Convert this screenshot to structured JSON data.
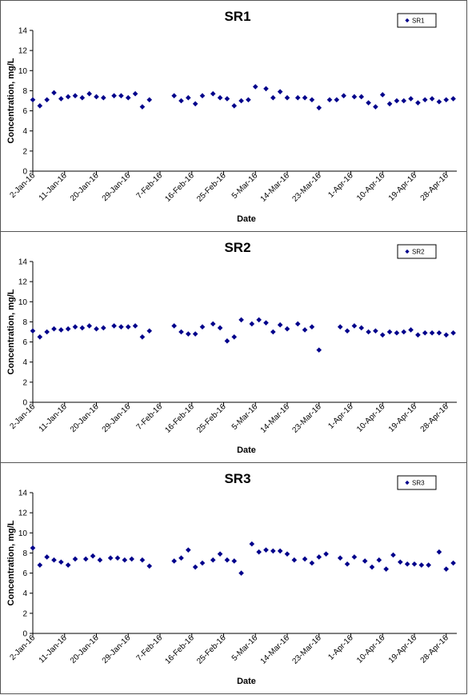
{
  "xlabel": "Date",
  "ylabel": "Concentration, mg/L",
  "marker_color": "#00008B",
  "x_tick_labels": [
    "2-Jan-16",
    "11-Jan-16",
    "20-Jan-16",
    "29-Jan-16",
    "7-Feb-16",
    "16-Feb-16",
    "25-Feb-16",
    "5-Mar-16",
    "14-Mar-16",
    "23-Mar-16",
    "1-Apr-16",
    "10-Apr-16",
    "19-Apr-16",
    "28-Apr-16"
  ],
  "y_tick_labels": [
    "0",
    "2",
    "4",
    "6",
    "8",
    "10",
    "12",
    "14"
  ],
  "chart_data": [
    {
      "type": "scatter",
      "title": "SR1",
      "xlabel": "Date",
      "ylabel": "Concentration, mg/L",
      "xlim": [
        "2-Jan-16",
        "1-May-16"
      ],
      "ylim": [
        0,
        14
      ],
      "legend": "top-right",
      "grid": false,
      "series": [
        {
          "name": "SR1",
          "x": [
            "2-Jan-16",
            "4-Jan-16",
            "6-Jan-16",
            "8-Jan-16",
            "10-Jan-16",
            "12-Jan-16",
            "14-Jan-16",
            "16-Jan-16",
            "18-Jan-16",
            "20-Jan-16",
            "22-Jan-16",
            "25-Jan-16",
            "27-Jan-16",
            "29-Jan-16",
            "31-Jan-16",
            "2-Feb-16",
            "4-Feb-16",
            "11-Feb-16",
            "13-Feb-16",
            "15-Feb-16",
            "17-Feb-16",
            "19-Feb-16",
            "22-Feb-16",
            "24-Feb-16",
            "26-Feb-16",
            "28-Feb-16",
            "1-Mar-16",
            "3-Mar-16",
            "5-Mar-16",
            "8-Mar-16",
            "10-Mar-16",
            "12-Mar-16",
            "14-Mar-16",
            "17-Mar-16",
            "19-Mar-16",
            "21-Mar-16",
            "23-Mar-16",
            "26-Mar-16",
            "28-Mar-16",
            "30-Mar-16",
            "2-Apr-16",
            "4-Apr-16",
            "6-Apr-16",
            "8-Apr-16",
            "10-Apr-16",
            "12-Apr-16",
            "14-Apr-16",
            "16-Apr-16",
            "18-Apr-16",
            "20-Apr-16",
            "22-Apr-16",
            "24-Apr-16",
            "26-Apr-16",
            "28-Apr-16",
            "30-Apr-16"
          ],
          "y": [
            7.1,
            6.5,
            7.1,
            7.8,
            7.2,
            7.4,
            7.5,
            7.3,
            7.7,
            7.4,
            7.3,
            7.5,
            7.5,
            7.3,
            7.7,
            6.4,
            7.1,
            7.5,
            7.0,
            7.3,
            6.7,
            7.5,
            7.7,
            7.3,
            7.2,
            6.5,
            7.0,
            7.1,
            8.4,
            8.2,
            7.3,
            7.9,
            7.3,
            7.3,
            7.3,
            7.1,
            6.3,
            7.1,
            7.1,
            7.5,
            7.4,
            7.4,
            6.8,
            6.4,
            7.6,
            6.7,
            7.0,
            7.0,
            7.2,
            6.8,
            7.1,
            7.2,
            6.9,
            7.1,
            7.2
          ]
        }
      ]
    },
    {
      "type": "scatter",
      "title": "SR2",
      "xlabel": "Date",
      "ylabel": "Concentration, mg/L",
      "xlim": [
        "2-Jan-16",
        "1-May-16"
      ],
      "ylim": [
        0,
        14
      ],
      "legend": "top-right",
      "grid": false,
      "series": [
        {
          "name": "SR2",
          "x": [
            "2-Jan-16",
            "4-Jan-16",
            "6-Jan-16",
            "8-Jan-16",
            "10-Jan-16",
            "12-Jan-16",
            "14-Jan-16",
            "16-Jan-16",
            "18-Jan-16",
            "20-Jan-16",
            "22-Jan-16",
            "25-Jan-16",
            "27-Jan-16",
            "29-Jan-16",
            "31-Jan-16",
            "2-Feb-16",
            "4-Feb-16",
            "11-Feb-16",
            "13-Feb-16",
            "15-Feb-16",
            "17-Feb-16",
            "19-Feb-16",
            "22-Feb-16",
            "24-Feb-16",
            "26-Feb-16",
            "28-Feb-16",
            "1-Mar-16",
            "4-Mar-16",
            "6-Mar-16",
            "8-Mar-16",
            "10-Mar-16",
            "12-Mar-16",
            "14-Mar-16",
            "17-Mar-16",
            "19-Mar-16",
            "21-Mar-16",
            "23-Mar-16",
            "29-Mar-16",
            "31-Mar-16",
            "2-Apr-16",
            "4-Apr-16",
            "6-Apr-16",
            "8-Apr-16",
            "10-Apr-16",
            "12-Apr-16",
            "14-Apr-16",
            "16-Apr-16",
            "18-Apr-16",
            "20-Apr-16",
            "22-Apr-16",
            "24-Apr-16",
            "26-Apr-16",
            "28-Apr-16",
            "30-Apr-16"
          ],
          "y": [
            7.1,
            6.5,
            7.0,
            7.3,
            7.2,
            7.3,
            7.5,
            7.4,
            7.6,
            7.3,
            7.4,
            7.6,
            7.5,
            7.5,
            7.6,
            6.5,
            7.1,
            7.6,
            7.0,
            6.8,
            6.8,
            7.5,
            7.8,
            7.4,
            6.1,
            6.5,
            8.2,
            7.8,
            8.2,
            7.9,
            7.0,
            7.7,
            7.3,
            7.8,
            7.2,
            7.5,
            5.2,
            7.5,
            7.1,
            7.6,
            7.4,
            7.0,
            7.1,
            6.7,
            7.0,
            6.9,
            7.0,
            7.2,
            6.7,
            6.9,
            6.9,
            6.9,
            6.7,
            6.9
          ]
        }
      ]
    },
    {
      "type": "scatter",
      "title": "SR3",
      "xlabel": "Date",
      "ylabel": "Concentration, mg/L",
      "xlim": [
        "2-Jan-16",
        "1-May-16"
      ],
      "ylim": [
        0,
        14
      ],
      "legend": "top-right",
      "grid": false,
      "series": [
        {
          "name": "SR3",
          "x": [
            "2-Jan-16",
            "4-Jan-16",
            "6-Jan-16",
            "8-Jan-16",
            "10-Jan-16",
            "12-Jan-16",
            "14-Jan-16",
            "17-Jan-16",
            "19-Jan-16",
            "21-Jan-16",
            "24-Jan-16",
            "26-Jan-16",
            "28-Jan-16",
            "30-Jan-16",
            "2-Feb-16",
            "4-Feb-16",
            "11-Feb-16",
            "13-Feb-16",
            "15-Feb-16",
            "17-Feb-16",
            "19-Feb-16",
            "22-Feb-16",
            "24-Feb-16",
            "26-Feb-16",
            "28-Feb-16",
            "1-Mar-16",
            "4-Mar-16",
            "6-Mar-16",
            "8-Mar-16",
            "10-Mar-16",
            "12-Mar-16",
            "14-Mar-16",
            "16-Mar-16",
            "19-Mar-16",
            "21-Mar-16",
            "23-Mar-16",
            "25-Mar-16",
            "29-Mar-16",
            "31-Mar-16",
            "2-Apr-16",
            "5-Apr-16",
            "7-Apr-16",
            "9-Apr-16",
            "11-Apr-16",
            "13-Apr-16",
            "15-Apr-16",
            "17-Apr-16",
            "19-Apr-16",
            "21-Apr-16",
            "23-Apr-16",
            "26-Apr-16",
            "28-Apr-16",
            "30-Apr-16"
          ],
          "y": [
            8.5,
            6.8,
            7.6,
            7.3,
            7.1,
            6.8,
            7.4,
            7.4,
            7.7,
            7.3,
            7.5,
            7.5,
            7.3,
            7.4,
            7.3,
            6.7,
            7.2,
            7.5,
            8.3,
            6.6,
            7.0,
            7.3,
            7.9,
            7.3,
            7.2,
            6.0,
            8.9,
            8.1,
            8.3,
            8.2,
            8.2,
            7.9,
            7.3,
            7.4,
            7.0,
            7.6,
            7.9,
            7.5,
            6.9,
            7.6,
            7.2,
            6.6,
            7.3,
            6.4,
            7.8,
            7.1,
            6.9,
            6.9,
            6.8,
            6.8,
            8.1,
            6.4,
            7.0
          ]
        }
      ]
    }
  ]
}
